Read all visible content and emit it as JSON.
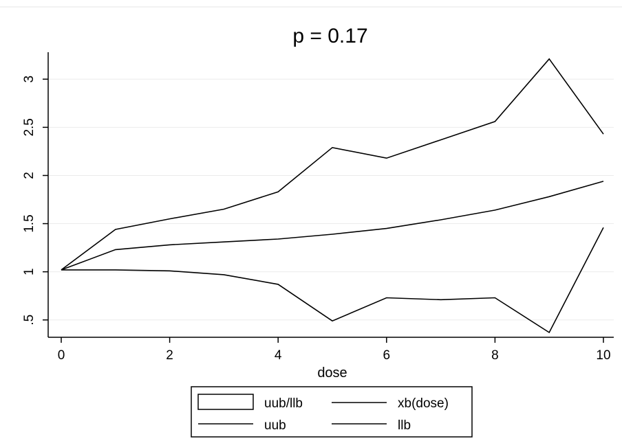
{
  "chart_data": {
    "type": "line",
    "title": "p = 0.17",
    "xlabel": "dose",
    "ylabel": "",
    "xlim": [
      0,
      10
    ],
    "ylim": [
      0.32,
      3.28
    ],
    "x_ticks": [
      0,
      2,
      4,
      6,
      8,
      10
    ],
    "x_tick_labels": [
      "0",
      "2",
      "4",
      "6",
      "8",
      "10"
    ],
    "y_ticks": [
      0.5,
      1,
      1.5,
      2,
      2.5,
      3
    ],
    "y_tick_labels": [
      ".5",
      "1",
      "1.5",
      "2",
      "2.5",
      "3"
    ],
    "grid": true,
    "legend_position": "bottom",
    "x": [
      0,
      1,
      2,
      3,
      4,
      5,
      6,
      7,
      8,
      9,
      10
    ],
    "series": [
      {
        "name": "uub",
        "values": [
          1.02,
          1.44,
          1.55,
          1.65,
          1.83,
          2.29,
          2.18,
          2.37,
          2.56,
          3.21,
          2.43
        ]
      },
      {
        "name": "xb(dose)",
        "values": [
          1.02,
          1.23,
          1.28,
          1.31,
          1.34,
          1.39,
          1.45,
          1.54,
          1.64,
          1.78,
          1.94
        ]
      },
      {
        "name": "llb",
        "values": [
          1.02,
          1.02,
          1.01,
          0.97,
          0.87,
          0.49,
          0.73,
          0.71,
          0.73,
          0.37,
          1.46
        ]
      }
    ],
    "legend": [
      {
        "label": "uub/llb",
        "symbol": "area"
      },
      {
        "label": "xb(dose)",
        "symbol": "line"
      },
      {
        "label": "uub",
        "symbol": "line"
      },
      {
        "label": "llb",
        "symbol": "line"
      }
    ],
    "colors": {
      "line": "#000000",
      "grid": "#ebebeb",
      "background": "#ffffff"
    }
  }
}
